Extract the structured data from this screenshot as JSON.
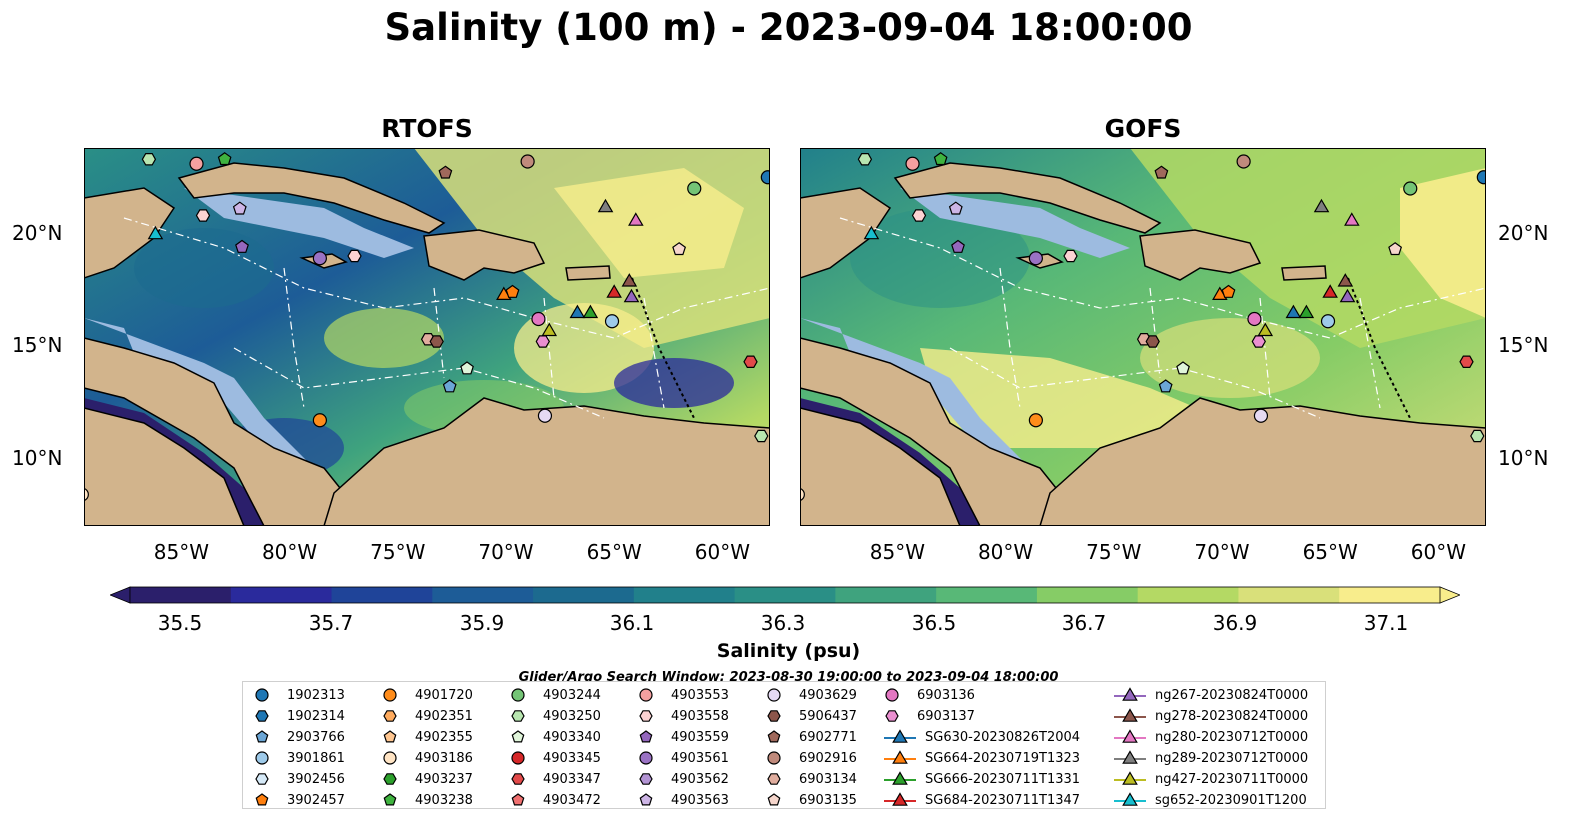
{
  "title": "Salinity (100 m) - 2023-09-04 18:00:00",
  "panels": [
    {
      "title": "RTOFS"
    },
    {
      "title": "GOFS"
    }
  ],
  "lon_ticks": [
    "85°W",
    "80°W",
    "75°W",
    "70°W",
    "65°W",
    "60°W"
  ],
  "lat_ticks": [
    "20°N",
    "15°N",
    "10°N"
  ],
  "colorbar": {
    "label": "Salinity (psu)",
    "ticks": [
      "35.5",
      "35.7",
      "35.9",
      "36.1",
      "36.3",
      "36.5",
      "36.7",
      "36.9",
      "37.1"
    ],
    "colors": [
      "#2b1f6b",
      "#2a2a9c",
      "#1f4499",
      "#1d5c97",
      "#1c6a8f",
      "#21808b",
      "#2a8f86",
      "#3fa37e",
      "#58b877",
      "#86cc66",
      "#b4d964",
      "#d9e07a",
      "#f8ed8c"
    ],
    "cmap": "haline"
  },
  "search_window": "Glider/Argo Search Window: 2023-08-30 19:00:00 to 2023-09-04 18:00:00",
  "legend": {
    "columns": [
      [
        {
          "label": "1902313",
          "marker": "circle",
          "color": "#1f77b4"
        },
        {
          "label": "1902314",
          "marker": "hexagon",
          "color": "#1f77b4"
        },
        {
          "label": "2903766",
          "marker": "pentagon",
          "color": "#6ba6d6"
        },
        {
          "label": "3901861",
          "marker": "circle",
          "color": "#9ecae9"
        },
        {
          "label": "3902456",
          "marker": "hexagon",
          "color": "#d6eaf8"
        },
        {
          "label": "3902457",
          "marker": "pentagon",
          "color": "#ff7f0e"
        }
      ],
      [
        {
          "label": "4901720",
          "marker": "circle",
          "color": "#ff8c1a"
        },
        {
          "label": "4902351",
          "marker": "hexagon",
          "color": "#ffab5e"
        },
        {
          "label": "4902355",
          "marker": "pentagon",
          "color": "#ffc690"
        },
        {
          "label": "4903186",
          "marker": "circle",
          "color": "#ffe4c4"
        },
        {
          "label": "4903237",
          "marker": "hexagon",
          "color": "#2ca02c"
        },
        {
          "label": "4903238",
          "marker": "pentagon",
          "color": "#3fb33f"
        }
      ],
      [
        {
          "label": "4903244",
          "marker": "circle",
          "color": "#74c476"
        },
        {
          "label": "4903250",
          "marker": "hexagon",
          "color": "#b8e6b0"
        },
        {
          "label": "4903340",
          "marker": "pentagon",
          "color": "#e0f5da"
        },
        {
          "label": "4903345",
          "marker": "circle",
          "color": "#d62728"
        },
        {
          "label": "4903347",
          "marker": "hexagon",
          "color": "#e24a4a"
        },
        {
          "label": "4903472",
          "marker": "pentagon",
          "color": "#f07070"
        }
      ],
      [
        {
          "label": "4903553",
          "marker": "circle",
          "color": "#f4a0a0"
        },
        {
          "label": "4903558",
          "marker": "hexagon",
          "color": "#fcd3d3"
        },
        {
          "label": "4903559",
          "marker": "pentagon",
          "color": "#9467bd"
        },
        {
          "label": "4903561",
          "marker": "circle",
          "color": "#9a72c4"
        },
        {
          "label": "4903562",
          "marker": "hexagon",
          "color": "#b394d4"
        },
        {
          "label": "4903563",
          "marker": "pentagon",
          "color": "#cdb5e6"
        }
      ],
      [
        {
          "label": "4903629",
          "marker": "circle",
          "color": "#e6daf3"
        },
        {
          "label": "5906437",
          "marker": "hexagon",
          "color": "#8c564b"
        },
        {
          "label": "6902771",
          "marker": "pentagon",
          "color": "#a0695c"
        },
        {
          "label": "6902916",
          "marker": "circle",
          "color": "#c08a7c"
        },
        {
          "label": "6903134",
          "marker": "hexagon",
          "color": "#e0ad9e"
        },
        {
          "label": "6903135",
          "marker": "pentagon",
          "color": "#f6d6cc"
        }
      ],
      [
        {
          "label": "6903136",
          "marker": "circle",
          "color": "#e377c2"
        },
        {
          "label": "6903137",
          "marker": "hexagon",
          "color": "#ea8fd0"
        },
        {
          "label": "SG630-20230826T2004",
          "marker": "triangle",
          "color": "#1f77b4"
        },
        {
          "label": "SG664-20230719T1323",
          "marker": "triangle",
          "color": "#ff7f0e"
        },
        {
          "label": "SG666-20230711T1331",
          "marker": "triangle",
          "color": "#2ca02c"
        },
        {
          "label": "SG684-20230711T1347",
          "marker": "triangle",
          "color": "#d62728"
        }
      ],
      [
        {
          "label": "ng267-20230824T0000",
          "marker": "triangle",
          "color": "#9467bd"
        },
        {
          "label": "ng278-20230824T0000",
          "marker": "triangle",
          "color": "#8c564b"
        },
        {
          "label": "ng280-20230712T0000",
          "marker": "triangle",
          "color": "#e377c2"
        },
        {
          "label": "ng289-20230712T0000",
          "marker": "triangle",
          "color": "#7f7f7f"
        },
        {
          "label": "ng427-20230711T0000",
          "marker": "triangle",
          "color": "#bcbd22"
        },
        {
          "label": "sg652-20230901T1200",
          "marker": "triangle",
          "color": "#17becf"
        }
      ]
    ]
  },
  "observations": [
    {
      "id": "1902313",
      "lon": -57.9,
      "lat": 22.5
    },
    {
      "id": "4903553",
      "lon": -84.3,
      "lat": 23.1
    },
    {
      "id": "4903250",
      "lon": -86.5,
      "lat": 23.3
    },
    {
      "id": "4903238",
      "lon": -83.0,
      "lat": 23.3
    },
    {
      "id": "6902916",
      "lon": -69.0,
      "lat": 23.2
    },
    {
      "id": "6902771",
      "lon": -72.8,
      "lat": 22.7
    },
    {
      "id": "4903244",
      "lon": -61.3,
      "lat": 22.0
    },
    {
      "id": "4903558",
      "lon": -84.0,
      "lat": 20.8
    },
    {
      "id": "4903563",
      "lon": -82.3,
      "lat": 21.1
    },
    {
      "id": "sg652-20230901T1200",
      "lon": -86.2,
      "lat": 20.0
    },
    {
      "id": "4903559",
      "lon": -82.2,
      "lat": 19.4
    },
    {
      "id": "4903561",
      "lon": -78.6,
      "lat": 18.9
    },
    {
      "id": "4903558",
      "lon": -77.0,
      "lat": 19.0
    },
    {
      "id": "ng289-20230712T0000",
      "lon": -65.4,
      "lat": 21.2
    },
    {
      "id": "ng280-20230712T0000",
      "lon": -64.0,
      "lat": 20.6
    },
    {
      "id": "6903135",
      "lon": -62.0,
      "lat": 19.3
    },
    {
      "id": "SG664-20230719T1323",
      "lon": -70.1,
      "lat": 17.3
    },
    {
      "id": "3902457",
      "lon": -69.7,
      "lat": 17.4
    },
    {
      "id": "SG684-20230711T1347",
      "lon": -65.0,
      "lat": 17.4
    },
    {
      "id": "ng278-20230824T0000",
      "lon": -64.3,
      "lat": 17.9
    },
    {
      "id": "ng267-20230824T0000",
      "lon": -64.2,
      "lat": 17.2
    },
    {
      "id": "6903136",
      "lon": -68.5,
      "lat": 16.2
    },
    {
      "id": "SG630-20230826T2004",
      "lon": -66.7,
      "lat": 16.5
    },
    {
      "id": "SG666-20230711T1331",
      "lon": -66.1,
      "lat": 16.5
    },
    {
      "id": "3901861",
      "lon": -65.1,
      "lat": 16.1
    },
    {
      "id": "ng427-20230711T0000",
      "lon": -68.0,
      "lat": 15.7
    },
    {
      "id": "6903137",
      "lon": -68.3,
      "lat": 15.2
    },
    {
      "id": "6903134",
      "lon": -73.6,
      "lat": 15.3
    },
    {
      "id": "5906437",
      "lon": -73.2,
      "lat": 15.2
    },
    {
      "id": "4903340",
      "lon": -71.8,
      "lat": 14.0
    },
    {
      "id": "2903766",
      "lon": -72.6,
      "lat": 13.2
    },
    {
      "id": "4903347",
      "lon": -58.7,
      "lat": 14.3
    },
    {
      "id": "4901720",
      "lon": -78.6,
      "lat": 11.7
    },
    {
      "id": "4903629",
      "lon": -68.2,
      "lat": 11.9
    },
    {
      "id": "4903250",
      "lon": -58.2,
      "lat": 11.0
    },
    {
      "id": "4903186",
      "lon": -89.6,
      "lat": 8.4
    }
  ]
}
